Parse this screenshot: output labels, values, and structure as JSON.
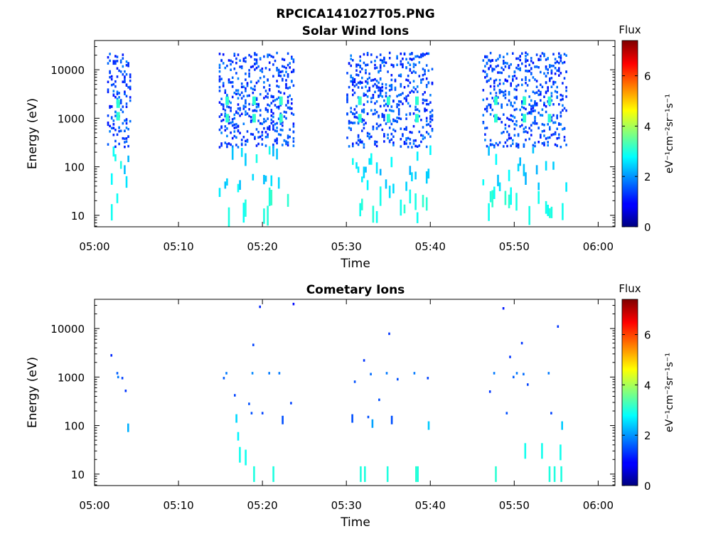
{
  "figure_title": "RPCICA141027T05.PNG",
  "chart_data": [
    {
      "type": "heatmap",
      "title": "Solar Wind Ions",
      "xlabel": "Time",
      "ylabel": "Energy (eV)",
      "x_tick_labels": [
        "05:00",
        "05:10",
        "05:20",
        "05:30",
        "05:40",
        "05:50",
        "06:00"
      ],
      "x_tick_minutes": [
        0,
        10,
        20,
        30,
        40,
        50,
        60
      ],
      "xlim_minutes": [
        0,
        62
      ],
      "y_scale": "log",
      "ylim": [
        5.8,
        40000
      ],
      "y_tick_labels": [
        "10",
        "100",
        "1000",
        "10000"
      ],
      "y_tick_values": [
        10,
        100,
        1000,
        10000
      ],
      "colorbar": {
        "label": "Flux",
        "units": "eV⁻¹cm⁻²sr⁻¹s⁻¹",
        "range": [
          0,
          7.4
        ],
        "tick_labels": [
          "0",
          "2",
          "4",
          "6"
        ],
        "tick_values": [
          0,
          2,
          4,
          6
        ]
      },
      "bursts": [
        {
          "start_min": 1.5,
          "end_min": 4.2,
          "peak_min": [
            2.6
          ],
          "peak_energy": [
            2000,
            1100
          ]
        },
        {
          "start_min": 14.8,
          "end_min": 23.7,
          "peak_min": [
            15.6,
            18.8,
            22.0
          ],
          "peak_energy": [
            2300,
            1000
          ]
        },
        {
          "start_min": 30.0,
          "end_min": 40.2,
          "peak_min": [
            31.4,
            34.8,
            38.2
          ],
          "peak_energy": [
            2300,
            1000
          ]
        },
        {
          "start_min": 46.2,
          "end_min": 56.2,
          "peak_min": [
            47.6,
            51.0,
            54.0
          ],
          "peak_energy": [
            2300,
            1000
          ]
        }
      ]
    },
    {
      "type": "heatmap",
      "title": "Cometary Ions",
      "xlabel": "Time",
      "ylabel": "Energy (eV)",
      "x_tick_labels": [
        "05:00",
        "05:10",
        "05:20",
        "05:30",
        "05:40",
        "05:50",
        "06:00"
      ],
      "x_tick_minutes": [
        0,
        10,
        20,
        30,
        40,
        50,
        60
      ],
      "xlim_minutes": [
        0,
        62
      ],
      "y_scale": "log",
      "ylim": [
        5.8,
        40000
      ],
      "y_tick_labels": [
        "10",
        "100",
        "1000",
        "10000"
      ],
      "y_tick_values": [
        10,
        100,
        1000,
        10000
      ],
      "colorbar": {
        "label": "Flux",
        "units": "eV⁻¹cm⁻²sr⁻¹s⁻¹",
        "range": [
          0,
          7.4
        ],
        "tick_labels": [
          "0",
          "2",
          "4",
          "6"
        ],
        "tick_values": [
          0,
          2,
          4,
          6
        ]
      },
      "pixels": [
        [
          1.9,
          2800,
          1.2
        ],
        [
          2.6,
          1200,
          1.6
        ],
        [
          2.7,
          1000,
          1.8
        ],
        [
          3.2,
          950,
          1.4
        ],
        [
          3.6,
          520,
          1.3
        ],
        [
          3.9,
          90,
          2.2
        ],
        [
          15.3,
          950,
          1.6
        ],
        [
          15.6,
          1200,
          1.8
        ],
        [
          16.6,
          420,
          1.4
        ],
        [
          16.8,
          140,
          2.5
        ],
        [
          17.0,
          60,
          2.7
        ],
        [
          17.2,
          25,
          2.9
        ],
        [
          17.9,
          22,
          2.9
        ],
        [
          18.3,
          280,
          1.5
        ],
        [
          18.6,
          180,
          1.5
        ],
        [
          18.7,
          1200,
          1.9
        ],
        [
          18.8,
          4600,
          1.4
        ],
        [
          18.9,
          10,
          3.0
        ],
        [
          19.6,
          28000,
          1.2
        ],
        [
          19.9,
          180,
          1.4
        ],
        [
          20.7,
          1200,
          1.8
        ],
        [
          21.2,
          10,
          3.0
        ],
        [
          21.9,
          1200,
          1.8
        ],
        [
          22.3,
          130,
          1.5
        ],
        [
          23.3,
          290,
          1.4
        ],
        [
          23.6,
          32000,
          1.0
        ],
        [
          30.6,
          140,
          1.5
        ],
        [
          30.9,
          800,
          1.5
        ],
        [
          31.6,
          10,
          3.0
        ],
        [
          32.0,
          2200,
          1.3
        ],
        [
          32.1,
          10,
          3.0
        ],
        [
          32.5,
          150,
          1.5
        ],
        [
          32.8,
          1150,
          1.7
        ],
        [
          33.0,
          110,
          2.1
        ],
        [
          33.8,
          340,
          1.5
        ],
        [
          34.7,
          1200,
          1.8
        ],
        [
          34.8,
          10,
          3.0
        ],
        [
          35.0,
          7800,
          1.3
        ],
        [
          35.3,
          130,
          1.5
        ],
        [
          36.0,
          900,
          1.5
        ],
        [
          38.0,
          1200,
          1.8
        ],
        [
          38.2,
          10,
          3.1
        ],
        [
          38.4,
          10,
          3.0
        ],
        [
          39.6,
          950,
          1.4
        ],
        [
          39.7,
          100,
          2.4
        ],
        [
          47.0,
          500,
          1.3
        ],
        [
          47.5,
          1200,
          1.8
        ],
        [
          47.7,
          10,
          3.1
        ],
        [
          48.6,
          26000,
          1.1
        ],
        [
          49.0,
          180,
          1.5
        ],
        [
          49.4,
          2600,
          1.3
        ],
        [
          49.8,
          1000,
          1.6
        ],
        [
          50.2,
          1200,
          1.8
        ],
        [
          50.8,
          5000,
          1.3
        ],
        [
          51.0,
          1150,
          1.7
        ],
        [
          51.5,
          700,
          1.4
        ],
        [
          51.2,
          30,
          2.9
        ],
        [
          53.2,
          30,
          2.9
        ],
        [
          54.0,
          1200,
          1.8
        ],
        [
          54.1,
          10,
          3.0
        ],
        [
          54.3,
          180,
          1.4
        ],
        [
          54.7,
          10,
          3.0
        ],
        [
          55.1,
          11000,
          1.3
        ],
        [
          55.4,
          28,
          2.9
        ],
        [
          55.5,
          10,
          3.0
        ],
        [
          55.6,
          100,
          2.4
        ]
      ]
    }
  ]
}
